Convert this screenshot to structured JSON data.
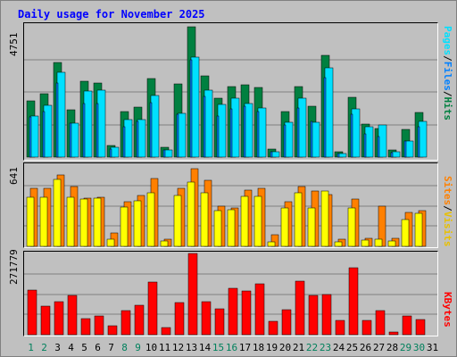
{
  "title": "Daily usage for November 2025",
  "colors": {
    "hits": "#008040",
    "files": "#0080ff",
    "pages": "#00e0ff",
    "visits": "#ffff00",
    "sites": "#ff8000",
    "kbytes": "#ff0000",
    "weekday": "#000000",
    "weekend": "#00805c"
  },
  "chart_data": [
    {
      "type": "bar",
      "ymax_label": "4751",
      "ylim": [
        0,
        4751
      ],
      "right_label": [
        "Pages",
        "/",
        "Files",
        "/",
        "Hits"
      ],
      "categories": [
        "1",
        "2",
        "3",
        "4",
        "5",
        "6",
        "7",
        "8",
        "9",
        "10",
        "11",
        "12",
        "13",
        "14",
        "15",
        "16",
        "17",
        "18",
        "19",
        "20",
        "21",
        "22",
        "23",
        "24",
        "25",
        "26",
        "27",
        "28",
        "29",
        "30",
        "31"
      ],
      "series": [
        {
          "name": "Hits",
          "values": [
            2050,
            2300,
            3460,
            1720,
            2750,
            2700,
            420,
            1650,
            1830,
            2870,
            350,
            2670,
            4750,
            2950,
            2150,
            2580,
            2630,
            2530,
            300,
            1650,
            2570,
            1840,
            3720,
            190,
            2180,
            1200,
            1050,
            260,
            1000,
            1620,
            0
          ]
        },
        {
          "name": "Files",
          "values": [
            1450,
            1650,
            2700,
            1250,
            1950,
            1950,
            290,
            1100,
            1300,
            2000,
            250,
            1550,
            3560,
            2200,
            1500,
            1750,
            1850,
            1650,
            180,
            1180,
            1800,
            1300,
            2900,
            120,
            1550,
            830,
            750,
            170,
            580,
            1100,
            0
          ]
        },
        {
          "name": "Pages",
          "values": [
            1500,
            1900,
            3100,
            1250,
            2400,
            2430,
            350,
            1370,
            1380,
            2250,
            250,
            1600,
            3660,
            2450,
            1920,
            2150,
            1950,
            1800,
            200,
            1270,
            2150,
            1270,
            3250,
            140,
            1770,
            1120,
            1180,
            190,
            600,
            1300,
            0
          ]
        }
      ]
    },
    {
      "type": "bar",
      "ymax_label": "641",
      "ylim": [
        0,
        641
      ],
      "right_label": [
        "Sites",
        "/",
        "Visits"
      ],
      "categories": [
        "1",
        "2",
        "3",
        "4",
        "5",
        "6",
        "7",
        "8",
        "9",
        "10",
        "11",
        "12",
        "13",
        "14",
        "15",
        "16",
        "17",
        "18",
        "19",
        "20",
        "21",
        "22",
        "23",
        "24",
        "25",
        "26",
        "27",
        "28",
        "29",
        "30",
        "31"
      ],
      "series": [
        {
          "name": "Visits",
          "values": [
            390,
            385,
            530,
            390,
            375,
            380,
            55,
            310,
            360,
            420,
            42,
            400,
            510,
            420,
            280,
            290,
            395,
            395,
            35,
            300,
            425,
            300,
            440,
            35,
            300,
            48,
            55,
            40,
            210,
            260,
            0
          ]
        },
        {
          "name": "Sites",
          "values": [
            460,
            460,
            560,
            470,
            380,
            390,
            105,
            355,
            400,
            535,
            55,
            460,
            610,
            520,
            320,
            300,
            445,
            460,
            90,
            350,
            470,
            440,
            410,
            55,
            375,
            65,
            320,
            65,
            265,
            280,
            0
          ]
        }
      ]
    },
    {
      "type": "bar",
      "ymax_label": "271779",
      "ylim": [
        0,
        271779
      ],
      "right_label": [
        "KBytes"
      ],
      "categories": [
        "1",
        "2",
        "3",
        "4",
        "5",
        "6",
        "7",
        "8",
        "9",
        "10",
        "11",
        "12",
        "13",
        "14",
        "15",
        "16",
        "17",
        "18",
        "19",
        "20",
        "21",
        "22",
        "23",
        "24",
        "25",
        "26",
        "27",
        "28",
        "29",
        "30",
        "31"
      ],
      "series": [
        {
          "name": "KBytes",
          "values": [
            150000,
            95000,
            110000,
            130000,
            55000,
            62000,
            30000,
            80000,
            100000,
            175000,
            25000,
            108000,
            271779,
            110000,
            88000,
            155000,
            145000,
            170000,
            44000,
            85000,
            180000,
            130000,
            135000,
            48000,
            225000,
            47000,
            80000,
            10000,
            62000,
            50000,
            0
          ]
        }
      ]
    }
  ],
  "days": [
    {
      "label": "1",
      "weekend": true
    },
    {
      "label": "2",
      "weekend": true
    },
    {
      "label": "3",
      "weekend": false
    },
    {
      "label": "4",
      "weekend": false
    },
    {
      "label": "5",
      "weekend": false
    },
    {
      "label": "6",
      "weekend": false
    },
    {
      "label": "7",
      "weekend": false
    },
    {
      "label": "8",
      "weekend": true
    },
    {
      "label": "9",
      "weekend": true
    },
    {
      "label": "10",
      "weekend": false
    },
    {
      "label": "11",
      "weekend": false
    },
    {
      "label": "12",
      "weekend": false
    },
    {
      "label": "13",
      "weekend": false
    },
    {
      "label": "14",
      "weekend": false
    },
    {
      "label": "15",
      "weekend": true
    },
    {
      "label": "16",
      "weekend": true
    },
    {
      "label": "17",
      "weekend": false
    },
    {
      "label": "18",
      "weekend": false
    },
    {
      "label": "19",
      "weekend": false
    },
    {
      "label": "20",
      "weekend": false
    },
    {
      "label": "21",
      "weekend": false
    },
    {
      "label": "22",
      "weekend": true
    },
    {
      "label": "23",
      "weekend": true
    },
    {
      "label": "24",
      "weekend": false
    },
    {
      "label": "25",
      "weekend": false
    },
    {
      "label": "26",
      "weekend": false
    },
    {
      "label": "27",
      "weekend": false
    },
    {
      "label": "28",
      "weekend": false
    },
    {
      "label": "29",
      "weekend": true
    },
    {
      "label": "30",
      "weekend": true
    },
    {
      "label": "31",
      "weekend": false
    }
  ]
}
